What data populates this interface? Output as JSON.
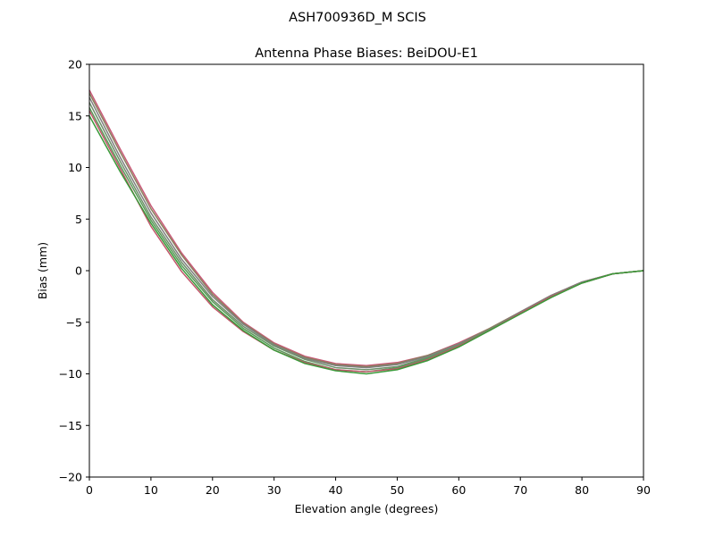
{
  "chart_data": {
    "type": "line",
    "suptitle": "ASH700936D_M    SCIS",
    "title": "Antenna Phase Biases: BeiDOU-E1",
    "xlabel": "Elevation angle (degrees)",
    "ylabel": "Bias (mm)",
    "xlim": [
      0,
      90
    ],
    "ylim": [
      -20,
      20
    ],
    "xticks": [
      0,
      10,
      20,
      30,
      40,
      50,
      60,
      70,
      80,
      90
    ],
    "yticks": [
      -20,
      -15,
      -10,
      -5,
      0,
      5,
      10,
      15,
      20
    ],
    "grid": false,
    "legend": false,
    "x": [
      0,
      5,
      10,
      15,
      20,
      25,
      30,
      35,
      40,
      45,
      50,
      55,
      60,
      65,
      70,
      75,
      80,
      85,
      90
    ],
    "series": [
      {
        "color": "#c85a78",
        "values": [
          17.5,
          11.8,
          6.3,
          1.7,
          -2.1,
          -5.0,
          -7.0,
          -8.3,
          -9.0,
          -9.2,
          -8.9,
          -8.2,
          -7.0,
          -5.6,
          -4.0,
          -2.4,
          -1.1,
          -0.3,
          0.0
        ]
      },
      {
        "color": "#8a7f5c",
        "values": [
          17.2,
          11.5,
          6.0,
          1.5,
          -2.3,
          -5.1,
          -7.1,
          -8.4,
          -9.1,
          -9.3,
          -9.0,
          -8.2,
          -7.1,
          -5.6,
          -4.0,
          -2.4,
          -1.1,
          -0.3,
          0.0
        ]
      },
      {
        "color": "#808080",
        "values": [
          16.8,
          11.0,
          5.6,
          1.1,
          -2.5,
          -5.2,
          -7.2,
          -8.5,
          -9.2,
          -9.4,
          -9.1,
          -8.3,
          -7.1,
          -5.7,
          -4.0,
          -2.4,
          -1.1,
          -0.3,
          0.0
        ]
      },
      {
        "color": "#6e8f6a",
        "values": [
          16.3,
          10.6,
          5.2,
          0.8,
          -2.8,
          -5.4,
          -7.3,
          -8.6,
          -9.4,
          -9.6,
          -9.3,
          -8.4,
          -7.2,
          -5.7,
          -4.1,
          -2.5,
          -1.2,
          -0.3,
          0.0
        ]
      },
      {
        "color": "#5a9a5a",
        "values": [
          15.8,
          10.2,
          4.9,
          0.5,
          -3.0,
          -5.6,
          -7.5,
          -8.8,
          -9.6,
          -9.8,
          -9.4,
          -8.5,
          -7.3,
          -5.8,
          -4.1,
          -2.5,
          -1.2,
          -0.3,
          0.0
        ]
      },
      {
        "color": "#c0566a",
        "values": [
          15.5,
          9.9,
          4.3,
          -0.1,
          -3.5,
          -5.9,
          -7.7,
          -8.9,
          -9.6,
          -9.8,
          -9.5,
          -8.6,
          -7.3,
          -5.8,
          -4.1,
          -2.5,
          -1.2,
          -0.3,
          0.0
        ]
      },
      {
        "color": "#3a9a3a",
        "values": [
          15.0,
          9.6,
          4.6,
          0.2,
          -3.3,
          -5.8,
          -7.7,
          -9.0,
          -9.7,
          -10.0,
          -9.6,
          -8.7,
          -7.4,
          -5.8,
          -4.2,
          -2.6,
          -1.2,
          -0.3,
          0.0
        ]
      }
    ]
  }
}
